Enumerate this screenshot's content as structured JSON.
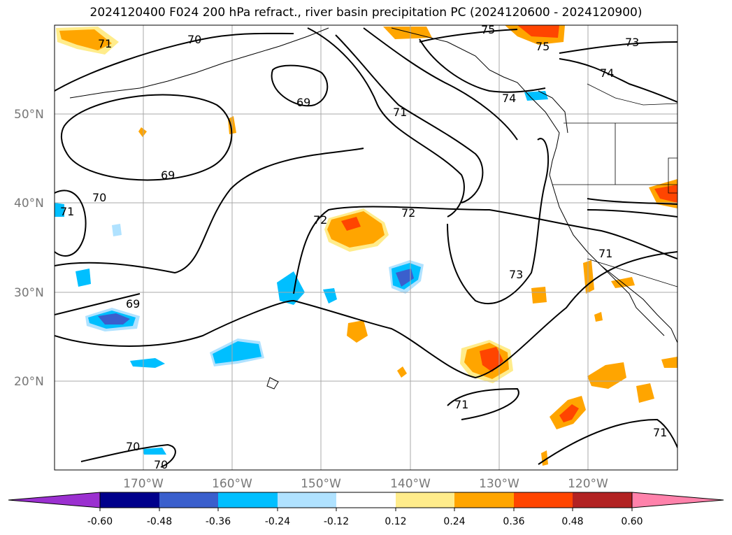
{
  "title": "2024120400 F024 200 hPa refract., river basin precipitation PC (2024120600 - 2024120900)",
  "map": {
    "lat_labels": [
      "50°N",
      "40°N",
      "30°N",
      "20°N"
    ],
    "lon_labels": [
      "170°W",
      "160°W",
      "150°W",
      "140°W",
      "130°W",
      "120°W"
    ],
    "contour_labels": [
      {
        "text": "70"
      },
      {
        "text": "71"
      },
      {
        "text": "75"
      },
      {
        "text": "75"
      },
      {
        "text": "73"
      },
      {
        "text": "74"
      },
      {
        "text": "69"
      },
      {
        "text": "71"
      },
      {
        "text": "74"
      },
      {
        "text": "69"
      },
      {
        "text": "70"
      },
      {
        "text": "71"
      },
      {
        "text": "72"
      },
      {
        "text": "72"
      },
      {
        "text": "71"
      },
      {
        "text": "73"
      },
      {
        "text": "69"
      },
      {
        "text": "71"
      },
      {
        "text": "70"
      },
      {
        "text": "70"
      },
      {
        "text": "71"
      }
    ]
  },
  "colorbar": {
    "ticks": [
      "-0.60",
      "-0.48",
      "-0.36",
      "-0.24",
      "-0.12",
      "0.12",
      "0.24",
      "0.36",
      "0.48",
      "0.60"
    ],
    "colors": [
      "#9b30d0",
      "#00008b",
      "#3a5fcd",
      "#00bfff",
      "#b0e2ff",
      "#ffffff",
      "#ffec8b",
      "#ffa500",
      "#ff4500",
      "#b22222",
      "#ff82ab"
    ]
  }
}
